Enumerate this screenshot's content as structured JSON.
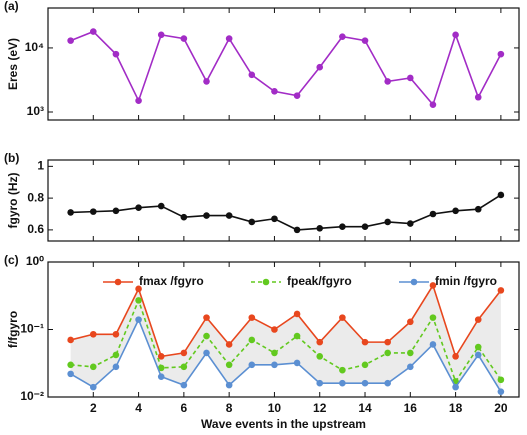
{
  "chart_data": [
    {
      "type": "line",
      "panel_label": "(a)",
      "ylabel": "Eres (eV)",
      "log_y": true,
      "x": [
        1,
        2,
        3,
        4,
        5,
        6,
        7,
        8,
        9,
        10,
        11,
        12,
        13,
        14,
        15,
        16,
        17,
        18,
        19,
        20
      ],
      "xlim": [
        0,
        20.8
      ],
      "xticks": [
        2,
        4,
        6,
        8,
        10,
        12,
        14,
        16,
        18,
        20
      ],
      "ylim": [
        750,
        42000
      ],
      "yticks": [
        {
          "value": 1000,
          "label": "10³"
        },
        {
          "value": 10000,
          "label": "10⁴"
        }
      ],
      "series": [
        {
          "color": "#a22cc6",
          "values": [
            13000,
            18000,
            8000,
            1500,
            16000,
            14000,
            3000,
            14000,
            3800,
            2100,
            1800,
            5000,
            15000,
            13000,
            3000,
            3400,
            1300,
            16000,
            1700,
            8000
          ]
        }
      ]
    },
    {
      "type": "line",
      "panel_label": "(b)",
      "ylabel": "fgyro (Hz)",
      "log_y": false,
      "x": [
        1,
        2,
        3,
        4,
        5,
        6,
        7,
        8,
        9,
        10,
        11,
        12,
        13,
        14,
        15,
        16,
        17,
        18,
        19,
        20
      ],
      "xlim": [
        0,
        20.8
      ],
      "xticks": [
        2,
        4,
        6,
        8,
        10,
        12,
        14,
        16,
        18,
        20
      ],
      "ylim": [
        0.53,
        1.04
      ],
      "yticks": [
        0.6,
        0.8,
        1
      ],
      "series": [
        {
          "color": "#111111",
          "values": [
            0.71,
            0.715,
            0.72,
            0.74,
            0.75,
            0.68,
            0.69,
            0.69,
            0.65,
            0.67,
            0.6,
            0.61,
            0.62,
            0.62,
            0.65,
            0.64,
            0.7,
            0.72,
            0.73,
            0.82
          ]
        }
      ]
    },
    {
      "type": "line",
      "panel_label": "(c)",
      "ylabel": "f/fgyro",
      "xlabel": "Wave events in the upstream",
      "log_y": true,
      "x": [
        1,
        2,
        3,
        4,
        5,
        6,
        7,
        8,
        9,
        10,
        11,
        12,
        13,
        14,
        15,
        16,
        17,
        18,
        19,
        20
      ],
      "xlim": [
        0,
        20.8
      ],
      "xticks": [
        2,
        4,
        6,
        8,
        10,
        12,
        14,
        16,
        18,
        20
      ],
      "ylim": [
        0.01,
        1
      ],
      "yticks": [
        {
          "value": 0.01,
          "label": "10⁻²"
        },
        {
          "value": 0.1,
          "label": "10⁻¹"
        },
        {
          "value": 1,
          "label": "10⁰"
        }
      ],
      "fill_between_color": "#ebebeb",
      "series": [
        {
          "name": "fmax /fgyro",
          "color": "#e8471e",
          "values": [
            0.07,
            0.085,
            0.085,
            0.4,
            0.04,
            0.045,
            0.15,
            0.06,
            0.15,
            0.1,
            0.17,
            0.065,
            0.15,
            0.065,
            0.065,
            0.13,
            0.45,
            0.04,
            0.14,
            0.38
          ]
        },
        {
          "name": "fpeak/fgyro",
          "color": "#62c91f",
          "dashed": true,
          "values": [
            0.03,
            0.028,
            0.042,
            0.27,
            0.027,
            0.028,
            0.08,
            0.03,
            0.07,
            0.045,
            0.08,
            0.04,
            0.025,
            0.03,
            0.045,
            0.045,
            0.15,
            0.017,
            0.055,
            0.018
          ]
        },
        {
          "name": "fmin /fgyro",
          "color": "#5b8fd2",
          "values": [
            0.022,
            0.014,
            0.028,
            0.14,
            0.02,
            0.015,
            0.045,
            0.015,
            0.03,
            0.03,
            0.032,
            0.016,
            0.016,
            0.016,
            0.016,
            0.028,
            0.06,
            0.014,
            0.042,
            0.012
          ]
        }
      ]
    }
  ]
}
